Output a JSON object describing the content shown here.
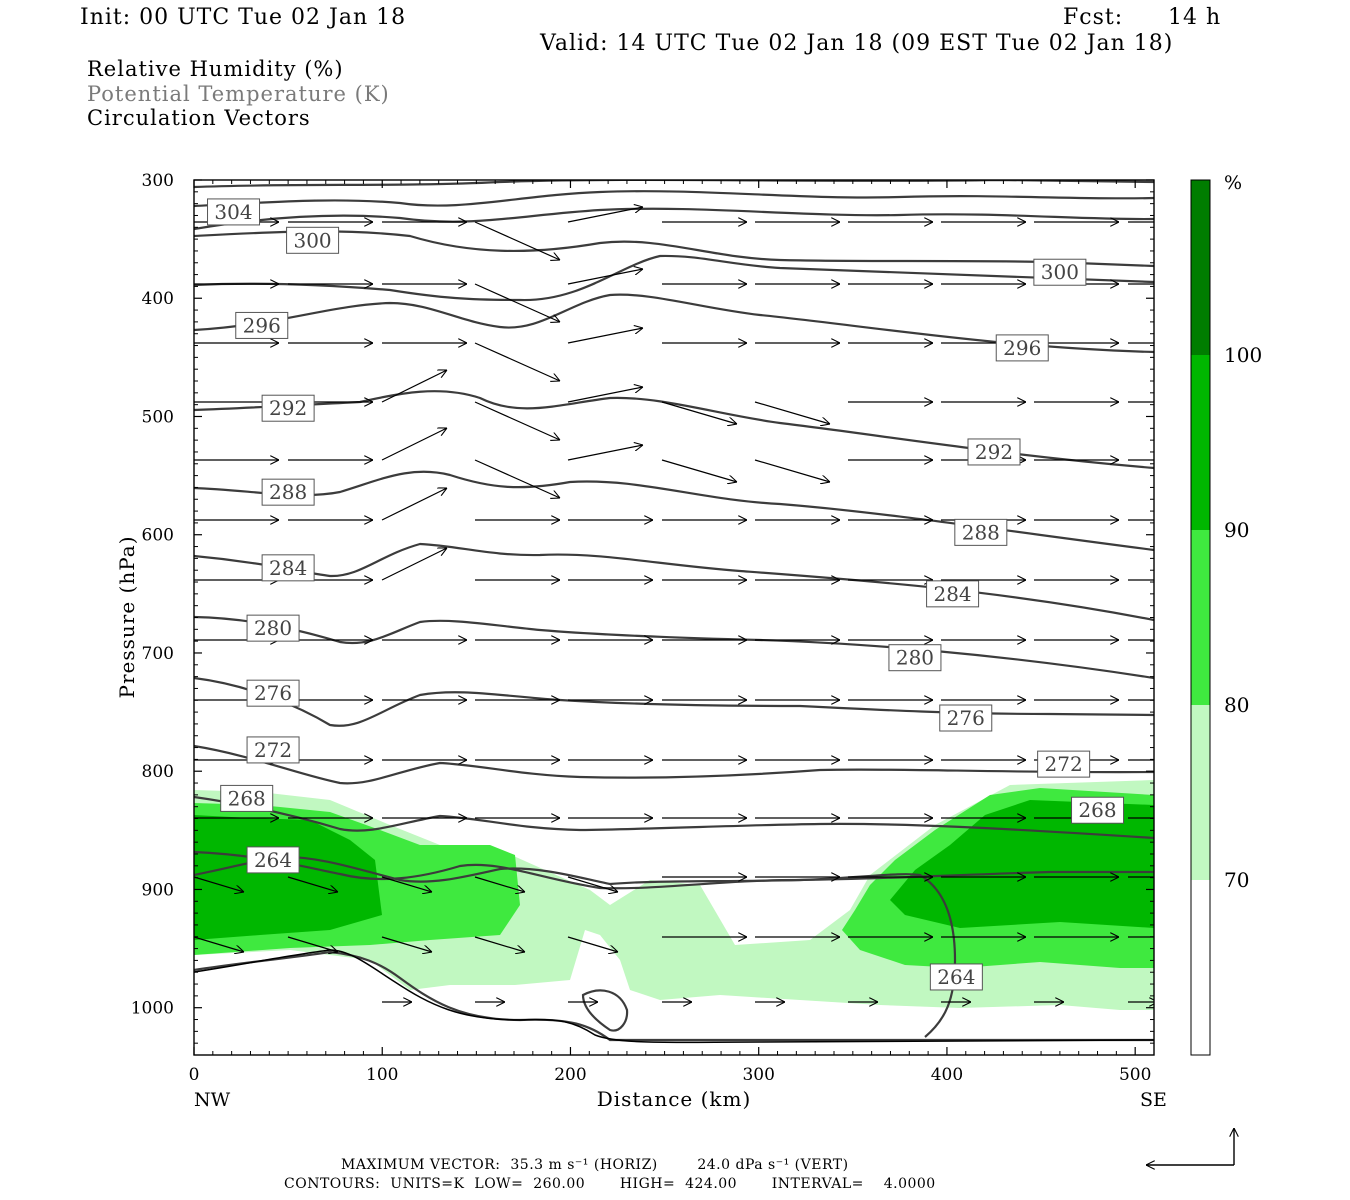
{
  "header": {
    "init": "Init: 00 UTC Tue 02 Jan 18",
    "fcst_label": "Fcst:",
    "fcst_value": "14 h",
    "valid": "Valid: 14 UTC Tue 02 Jan 18 (09 EST Tue 02 Jan 18)"
  },
  "legend": {
    "field1": "Relative Humidity (%)",
    "field2": "Potential Temperature (K)",
    "field3": "Circulation Vectors"
  },
  "colors": {
    "rh_70_80": "#c1f8c1",
    "rh_80_90": "#3fe93f",
    "rh_90_100": "#00b700",
    "rh_100_plus": "#007d00",
    "theta_line": "#3c3c3c",
    "vector": "#000000"
  },
  "chart_data": {
    "type": "cross-section",
    "xlabel": "Distance (km)",
    "ylabel": "Pressure (hPa)",
    "xlim": [
      0,
      510
    ],
    "ylim": [
      1040,
      300
    ],
    "x_ticks": [
      0,
      100,
      200,
      300,
      400,
      500
    ],
    "x_tick_labels": [
      "0",
      "100",
      "200",
      "300",
      "400",
      "500"
    ],
    "y_ticks": [
      300,
      400,
      500,
      600,
      700,
      800,
      900,
      1000
    ],
    "y_tick_labels": [
      "300",
      "400",
      "500",
      "600",
      "700",
      "800",
      "900",
      "1000"
    ],
    "x_end_labels": {
      "left": "NW",
      "right": "SE"
    },
    "colorbar": {
      "unit": "%",
      "levels": [
        "70",
        "80",
        "90",
        "100"
      ]
    },
    "theta_labels": [
      {
        "text": "304",
        "x": 21,
        "p": 327
      },
      {
        "text": "300",
        "x": 63,
        "p": 351
      },
      {
        "text": "300",
        "x": 460,
        "p": 378
      },
      {
        "text": "296",
        "x": 36,
        "p": 423
      },
      {
        "text": "296",
        "x": 440,
        "p": 442
      },
      {
        "text": "292",
        "x": 50,
        "p": 493
      },
      {
        "text": "292",
        "x": 425,
        "p": 530
      },
      {
        "text": "288",
        "x": 50,
        "p": 564
      },
      {
        "text": "288",
        "x": 418,
        "p": 598
      },
      {
        "text": "284",
        "x": 50,
        "p": 628
      },
      {
        "text": "284",
        "x": 403,
        "p": 650
      },
      {
        "text": "280",
        "x": 42,
        "p": 679
      },
      {
        "text": "280",
        "x": 383,
        "p": 704
      },
      {
        "text": "276",
        "x": 42,
        "p": 734
      },
      {
        "text": "276",
        "x": 410,
        "p": 755
      },
      {
        "text": "272",
        "x": 42,
        "p": 782
      },
      {
        "text": "272",
        "x": 462,
        "p": 794
      },
      {
        "text": "268",
        "x": 28,
        "p": 823
      },
      {
        "text": "268",
        "x": 480,
        "p": 833
      },
      {
        "text": "264",
        "x": 42,
        "p": 875
      },
      {
        "text": "264",
        "x": 405,
        "p": 974
      }
    ]
  },
  "footer": {
    "max_vector_line": "MAXIMUM VECTOR:  35.3 m s⁻¹ (HORIZ)        24.0 dPa s⁻¹ (VERT)",
    "contours_line": "CONTOURS:  UNITS=K  LOW=  260.00       HIGH=  424.00       INTERVAL=    4.0000"
  }
}
